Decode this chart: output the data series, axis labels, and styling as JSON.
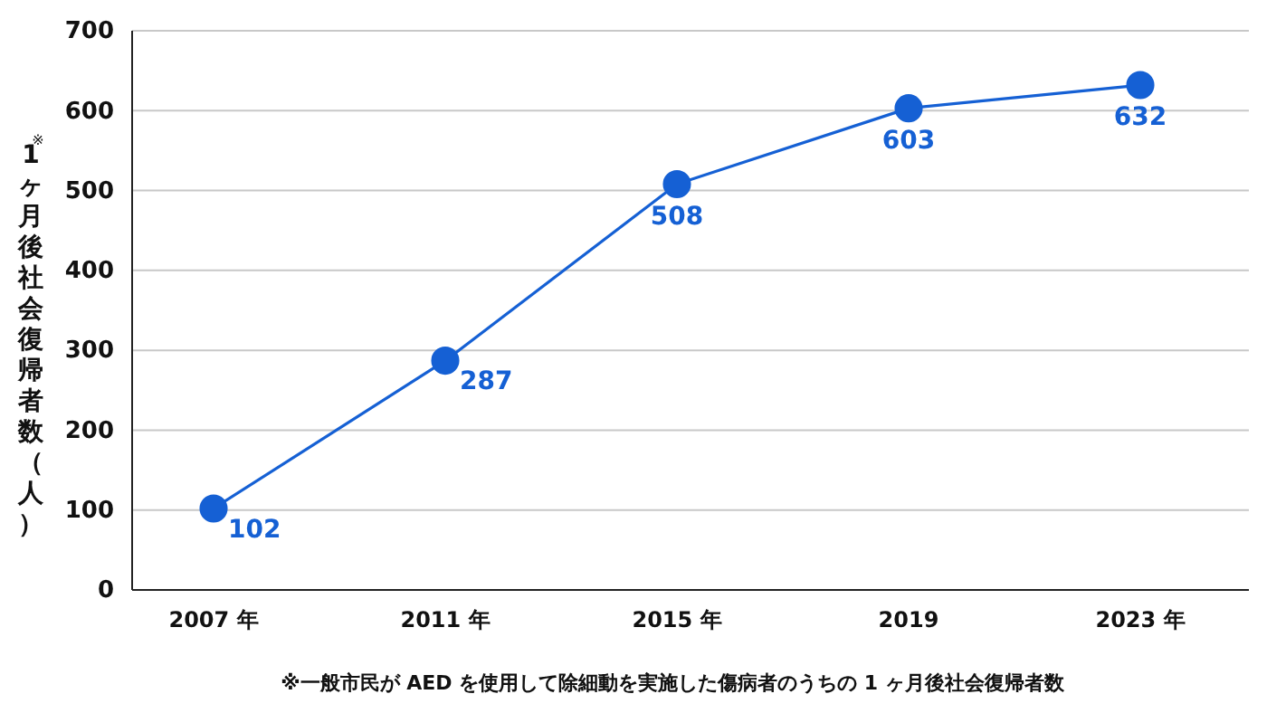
{
  "chart_data": {
    "type": "line",
    "ylabel": "$^{※}$1ヶ月後社会復帰者数（人）",
    "categories": [
      "2007 年",
      "2011 年",
      "2015 年",
      "2019",
      "2023 年"
    ],
    "series": [
      {
        "color": "#1560d4",
        "values": [
          102,
          287,
          508,
          603,
          632
        ]
      }
    ],
    "ylim": [
      0,
      700
    ],
    "yticks": [
      0,
      100,
      200,
      300,
      400,
      500,
      600,
      700
    ],
    "grid": "y",
    "marker": "circle",
    "line_style": "solid",
    "data_labels": true,
    "annotations": [
      "※一般市民が AED を使用して除細動を実施した傷病者のうちの 1 ヶ月後社会復帰者数"
    ]
  }
}
